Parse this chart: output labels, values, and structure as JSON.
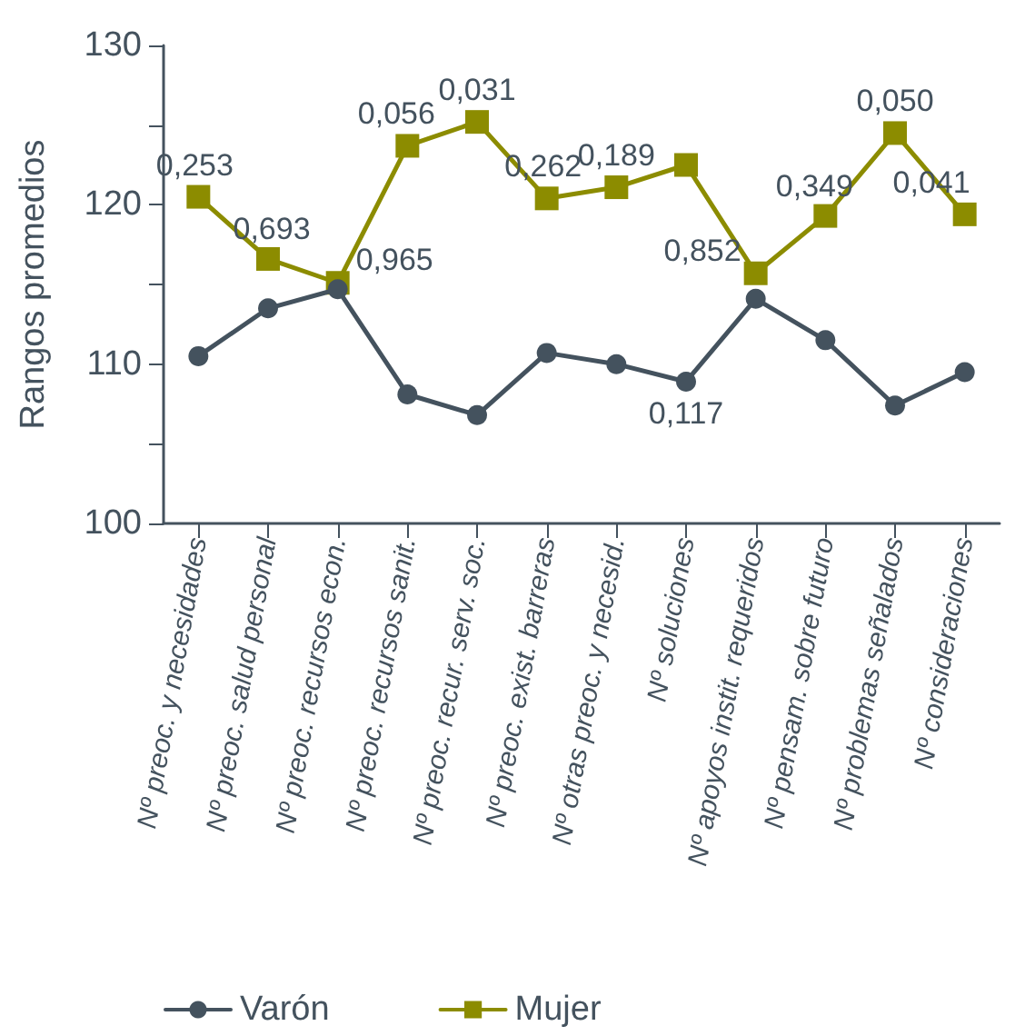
{
  "chart_data": {
    "type": "line",
    "ylabel": "Rangos promedios",
    "categories": [
      "Nº preoc. y necesidades",
      "Nº preoc. salud personal",
      "Nº preoc. recursos econ.",
      "Nº preoc. recursos sanit.",
      "Nº preoc. recur. serv. soc.",
      "Nº preoc. exist. barreras",
      "Nº otras preoc. y necesid.",
      "Nº soluciones",
      "Nº apoyos instit. requeridos",
      "Nº pensam. sobre futuro",
      "Nº problemas señalados",
      "Nº consideraciones"
    ],
    "series": [
      {
        "name": "Varón",
        "color": "#44525e",
        "marker": "circle",
        "values": [
          110.5,
          113.5,
          114.7,
          108.1,
          106.8,
          110.7,
          110.0,
          108.9,
          114.1,
          111.5,
          107.4,
          109.5
        ]
      },
      {
        "name": "Mujer",
        "color": "#8c8c00",
        "marker": "square",
        "values": [
          120.5,
          116.6,
          115.1,
          123.7,
          125.2,
          120.4,
          121.1,
          122.5,
          115.7,
          119.3,
          124.5,
          119.4
        ]
      }
    ],
    "ylim": [
      100,
      130
    ],
    "yticks": [
      100,
      {
        "value": 105,
        "label": null
      },
      110,
      {
        "value": 115,
        "label": null
      },
      120,
      {
        "value": 125,
        "label": null
      },
      130
    ],
    "grid": false,
    "legend": "bottom",
    "line_style": "solid",
    "annotations": [
      "0,253",
      "0,693",
      "0,965",
      "0,056",
      "0,031",
      "0,262",
      "0,189",
      "0,117",
      "0,852",
      "0,349",
      "0,050",
      "0,041"
    ]
  }
}
